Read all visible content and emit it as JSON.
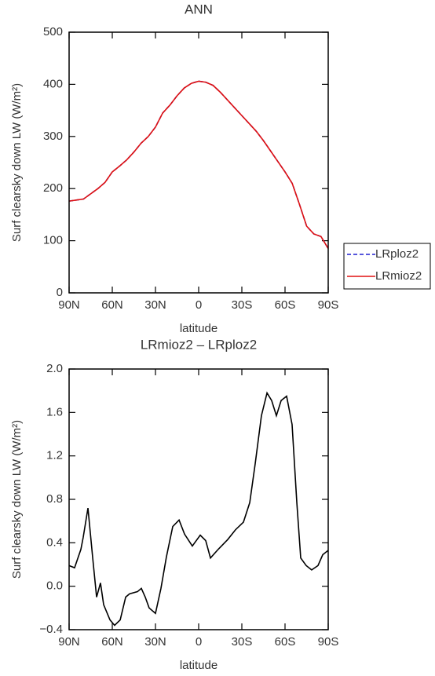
{
  "chart_data": [
    {
      "type": "line",
      "title": "ANN",
      "x_label": "latitude",
      "y_label": "Surf clearsky down LW (W/m²)",
      "x": [
        90,
        85,
        80,
        75,
        70,
        65,
        60,
        55,
        50,
        45,
        40,
        35,
        30,
        25,
        20,
        15,
        10,
        5,
        0,
        -5,
        -10,
        -15,
        -20,
        -25,
        -30,
        -35,
        -40,
        -45,
        -50,
        -55,
        -60,
        -65,
        -70,
        -75,
        -80,
        -85,
        -90
      ],
      "series": [
        {
          "name": "LRploz2",
          "color": "#1f1fd0",
          "linestyle": "dashed",
          "values": [
            176,
            178,
            180,
            190,
            200,
            212,
            232,
            243,
            255,
            270,
            287,
            300,
            318,
            345,
            360,
            378,
            393,
            402,
            406,
            404,
            398,
            385,
            370,
            355,
            340,
            325,
            310,
            292,
            272,
            252,
            232,
            210,
            170,
            128,
            113,
            108,
            85
          ]
        },
        {
          "name": "LRmioz2",
          "color": "#e01010",
          "linestyle": "solid",
          "values": [
            176,
            178,
            180,
            190,
            200,
            212,
            232,
            243,
            255,
            270,
            287,
            300,
            318,
            345,
            360,
            378,
            393,
            402,
            406,
            404,
            398,
            385,
            370,
            355,
            340,
            325,
            310,
            292,
            272,
            252,
            232,
            210,
            170,
            128,
            113,
            108,
            85
          ]
        }
      ],
      "xlim": [
        90,
        -90
      ],
      "xticks": [
        {
          "value": 90,
          "label": "90N"
        },
        {
          "value": 60,
          "label": "60N"
        },
        {
          "value": 30,
          "label": "30N"
        },
        0,
        {
          "value": -30,
          "label": "30S"
        },
        {
          "value": -60,
          "label": "60S"
        },
        {
          "value": -90,
          "label": "90S"
        }
      ],
      "ylim": [
        0,
        500
      ],
      "yticks": [
        0,
        100,
        200,
        300,
        400,
        500
      ],
      "legend": "right"
    },
    {
      "type": "line",
      "title": "LRmioz2 – LRploz2",
      "x_label": "latitude",
      "y_label": "Surf clearsky down LW (W/m²)",
      "x": [
        90,
        86.2,
        81.8,
        80.2,
        76.9,
        73.6,
        70.9,
        68.2,
        66.0,
        61.6,
        58.4,
        54.5,
        50.7,
        48.0,
        42.5,
        39.8,
        37.1,
        34.4,
        30.0,
        26.2,
        22.4,
        18.0,
        13.6,
        9.8,
        4.4,
        -1.1,
        -4.9,
        -8.2,
        -13.6,
        -20.2,
        -25.6,
        -31.1,
        -35.5,
        -39.3,
        -43.6,
        -47.5,
        -50.7,
        -54.0,
        -57.3,
        -61.1,
        -64.9,
        -68.2,
        -70.9,
        -74.7,
        -78.5,
        -82.9,
        -86.2,
        -90
      ],
      "values": [
        0.19,
        0.17,
        0.34,
        0.45,
        0.72,
        0.26,
        -0.1,
        0.03,
        -0.17,
        -0.31,
        -0.36,
        -0.31,
        -0.1,
        -0.07,
        -0.05,
        -0.02,
        -0.1,
        -0.2,
        -0.25,
        -0.02,
        0.27,
        0.55,
        0.61,
        0.48,
        0.37,
        0.47,
        0.42,
        0.26,
        0.34,
        0.43,
        0.52,
        0.59,
        0.77,
        1.13,
        1.57,
        1.78,
        1.71,
        1.57,
        1.71,
        1.75,
        1.49,
        0.77,
        0.26,
        0.19,
        0.15,
        0.19,
        0.29,
        0.33
      ],
      "color": "#000000",
      "xlim": [
        90,
        -90
      ],
      "xticks": [
        {
          "value": 90,
          "label": "90N"
        },
        {
          "value": 60,
          "label": "60N"
        },
        {
          "value": 30,
          "label": "30N"
        },
        0,
        {
          "value": -30,
          "label": "30S"
        },
        {
          "value": -60,
          "label": "60S"
        },
        {
          "value": -90,
          "label": "90S"
        }
      ],
      "ylim": [
        -0.4,
        2.0
      ],
      "yticks": [
        {
          "value": -0.4,
          "label": "−0.4"
        },
        {
          "value": 0,
          "label": "0.0"
        },
        0.4,
        0.8,
        1.2,
        1.6,
        {
          "value": 2.0,
          "label": "2.0"
        }
      ]
    }
  ]
}
